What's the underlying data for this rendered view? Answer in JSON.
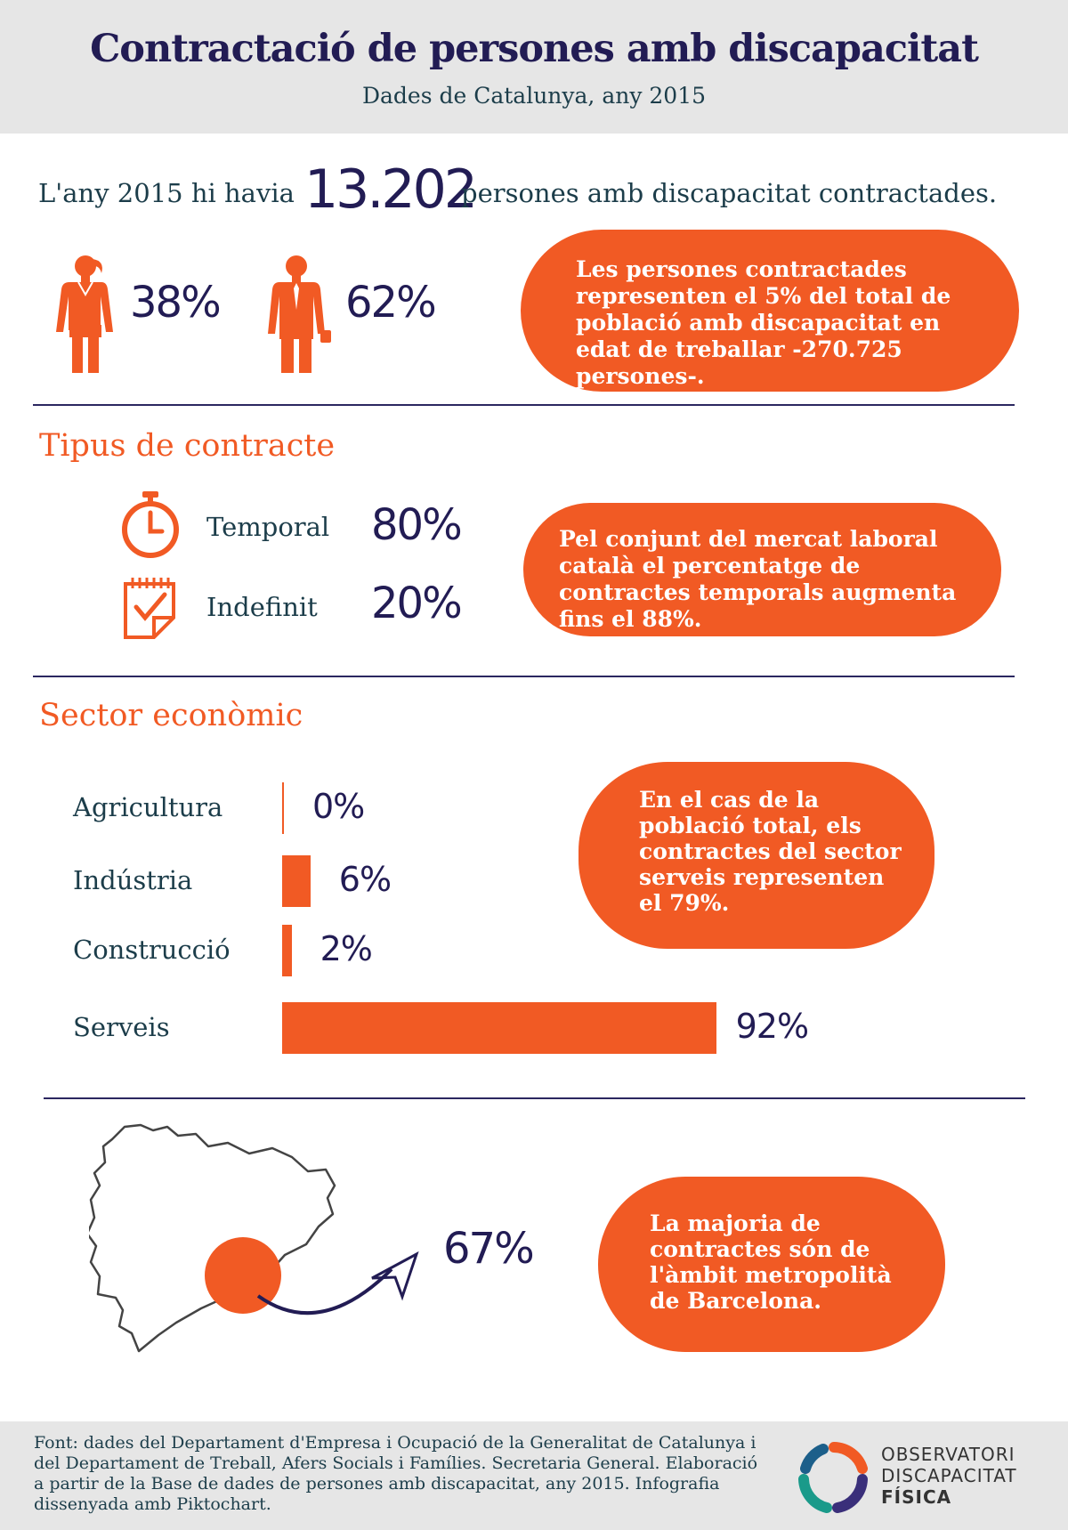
{
  "header": {
    "title": "Contractació de persones amb discapacitat",
    "subtitle": "Dades de Catalunya, any 2015"
  },
  "intro": {
    "prefix": "L'any 2015 hi havia",
    "number": "13.202",
    "suffix": "persones amb discapacitat contractades."
  },
  "gender": {
    "women_pct": "38%",
    "men_pct": "62%",
    "note": "Les persones contractades representen el 5% del total de població amb discapacitat en edat de treballar -270.725 persones-."
  },
  "contract_types": {
    "title": "Tipus de contracte",
    "items": [
      {
        "label": "Temporal",
        "value": "80%",
        "icon": "stopwatch-icon"
      },
      {
        "label": "Indefinit",
        "value": "20%",
        "icon": "calendar-check-icon"
      }
    ],
    "note": "Pel conjunt del mercat laboral català el percentatge de contractes temporals augmenta fins el 88%."
  },
  "sectors": {
    "title": "Sector econòmic",
    "note": "En el cas de la població total, els contractes del sector serveis representen el 79%."
  },
  "chart_data": {
    "type": "bar",
    "orientation": "horizontal",
    "categories": [
      "Agricultura",
      "Indústria",
      "Construcció",
      "Serveis"
    ],
    "values": [
      0,
      6,
      2,
      92
    ],
    "value_labels": [
      "0%",
      "6%",
      "2%",
      "92%"
    ],
    "color": "#f15a24"
  },
  "region": {
    "pct": "67%",
    "note": "La majoria de contractes són de l'àmbit metropolità de Barcelona."
  },
  "footer": {
    "source": "Font: dades del  Departament d'Empresa i Ocupació de la Generalitat de Catalunya i  del Departament de Treball, Afers Socials i Famílies. Secretaria General. Elaboració a partir de la Base de dades de persones amb discapacitat, any 2015. Infografia dissenyada amb Piktochart.",
    "logo_line1": "OBSERVATORI",
    "logo_line2": "DISCAPACITAT",
    "logo_line3": "FÍSICA"
  },
  "colors": {
    "accent": "#f15a24",
    "navy": "#221c54",
    "teal": "#1c3d4a",
    "band": "#e6e6e6"
  }
}
